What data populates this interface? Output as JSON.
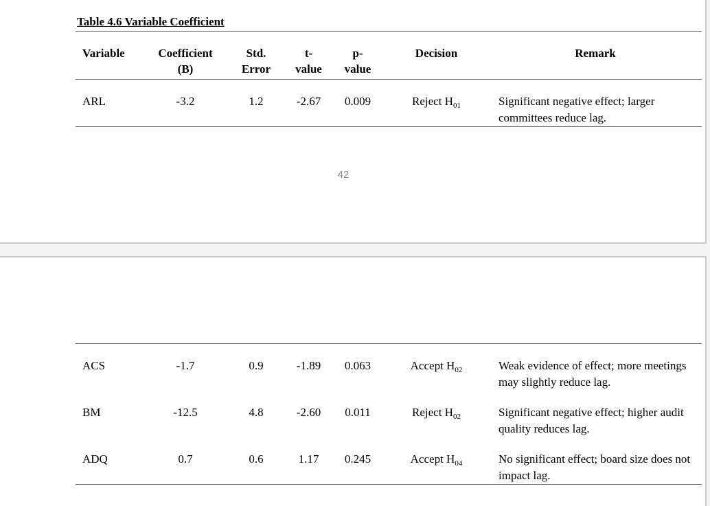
{
  "app": {
    "background_color": "#f4f4f4",
    "page_color": "#ffffff",
    "page_border_color": "#c8c8c8",
    "table_rule_color": "#666666",
    "page_number_color": "#8a8a8a"
  },
  "document": {
    "title": "Table 4.6 Variable Coefficient",
    "page_number": "42",
    "table": {
      "headers": {
        "variable": "Variable",
        "coefficient_l1": "Coefficient",
        "coefficient_l2": "(B)",
        "std_l1": "Std.",
        "std_l2": "Error",
        "t_l1": "t-",
        "t_l2": "value",
        "p_l1": "p-",
        "p_l2": "value",
        "decision": "Decision",
        "remark": "Remark"
      },
      "rows": [
        {
          "variable": "ARL",
          "coefficient": "-3.2",
          "std_error": "1.2",
          "t_value": "-2.67",
          "p_value": "0.009",
          "decision": "Reject H",
          "decision_sub": "01",
          "remark": "Significant negative effect; larger committees reduce lag."
        },
        {
          "variable": "ACS",
          "coefficient": "-1.7",
          "std_error": "0.9",
          "t_value": "-1.89",
          "p_value": "0.063",
          "decision": "Accept H",
          "decision_sub": "02",
          "remark": "Weak evidence of effect; more meetings may slightly reduce lag."
        },
        {
          "variable": "BM",
          "coefficient": "-12.5",
          "std_error": "4.8",
          "t_value": "-2.60",
          "p_value": "0.011",
          "decision": "Reject H",
          "decision_sub": "02",
          "remark": "Significant negative effect; higher audit quality reduces lag."
        },
        {
          "variable": "ADQ",
          "coefficient": "0.7",
          "std_error": "0.6",
          "t_value": "1.17",
          "p_value": "0.245",
          "decision": "Accept H",
          "decision_sub": "04",
          "remark": "No significant effect; board size does not impact lag."
        }
      ]
    }
  }
}
